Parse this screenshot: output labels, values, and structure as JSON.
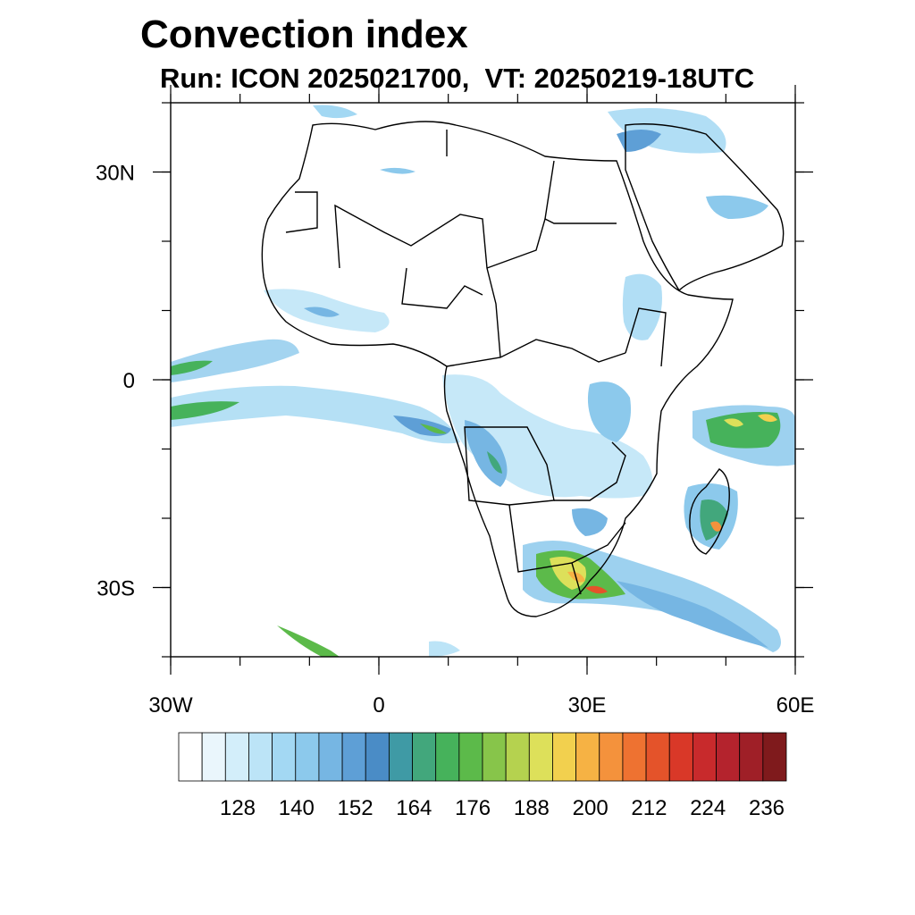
{
  "title": "Convection index",
  "subtitle": "Run: ICON 2025021700,  VT: 20250219-18UTC",
  "map": {
    "region": "Africa",
    "lon_range": [
      -30,
      60
    ],
    "lat_range": [
      -40,
      40
    ],
    "lat_ticks": [
      {
        "value": 30,
        "label": "30N"
      },
      {
        "value": 0,
        "label": "0"
      },
      {
        "value": -30,
        "label": "30S"
      }
    ],
    "lon_ticks": [
      {
        "value": -30,
        "label": "30W"
      },
      {
        "value": 0,
        "label": "0"
      },
      {
        "value": 30,
        "label": "30E"
      },
      {
        "value": 60,
        "label": "60E"
      }
    ]
  },
  "colorbar": {
    "labels": [
      "128",
      "140",
      "152",
      "164",
      "176",
      "188",
      "200",
      "212",
      "224",
      "236"
    ],
    "colors": [
      "#ffffff",
      "#eaf6fc",
      "#d3eefa",
      "#bce4f7",
      "#a3d8f3",
      "#8cc9ec",
      "#76b6e3",
      "#5e9fd6",
      "#4a8cc6",
      "#3f9aa5",
      "#42a77c",
      "#46b25b",
      "#5cba4a",
      "#87c54a",
      "#b5d24f",
      "#dde05a",
      "#f2d04e",
      "#f6b244",
      "#f4923c",
      "#ee7231",
      "#e4532a",
      "#d93828",
      "#c82a2c",
      "#b4232d",
      "#9f1f27",
      "#7f1a1c"
    ]
  }
}
